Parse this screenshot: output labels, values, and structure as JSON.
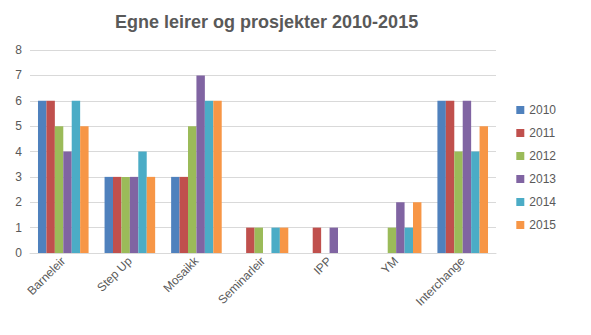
{
  "chart_data": {
    "type": "bar",
    "title": "Egne leirer og prosjekter 2010-2015",
    "categories": [
      "Barneleir",
      "Step Up",
      "Mosaikk",
      "Seminarleir",
      "IPP",
      "YM",
      "Interchange"
    ],
    "series": [
      {
        "name": "2010",
        "color": "#4f81bd",
        "values": [
          6,
          3,
          3,
          0,
          0,
          0,
          6
        ]
      },
      {
        "name": "2011",
        "color": "#c0504d",
        "values": [
          6,
          3,
          3,
          1,
          1,
          0,
          6
        ]
      },
      {
        "name": "2012",
        "color": "#9bbb59",
        "values": [
          5,
          3,
          5,
          1,
          0,
          1,
          4
        ]
      },
      {
        "name": "2013",
        "color": "#8064a2",
        "values": [
          4,
          3,
          7,
          0,
          1,
          2,
          6
        ]
      },
      {
        "name": "2014",
        "color": "#4bacc6",
        "values": [
          6,
          4,
          6,
          1,
          0,
          1,
          4
        ]
      },
      {
        "name": "2015",
        "color": "#f79646",
        "values": [
          5,
          3,
          6,
          1,
          0,
          2,
          5
        ]
      }
    ],
    "ylim": [
      0,
      8
    ],
    "yticks": [
      0,
      1,
      2,
      3,
      4,
      5,
      6,
      7,
      8
    ],
    "grid": true,
    "legend": "right"
  }
}
